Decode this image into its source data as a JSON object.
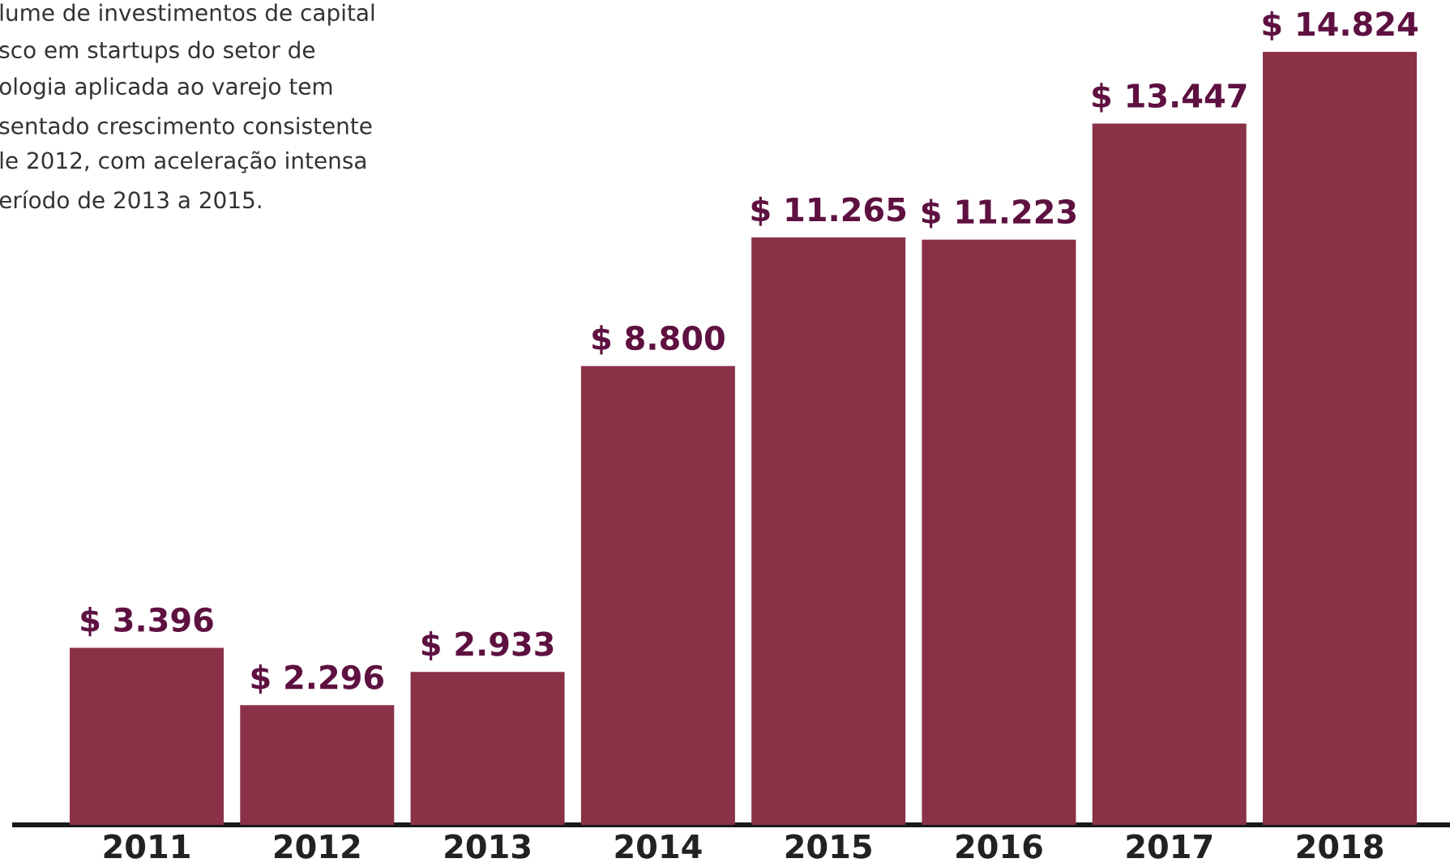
{
  "chart_data": {
    "type": "bar",
    "categories": [
      "2011",
      "2012",
      "2013",
      "2014",
      "2015",
      "2016",
      "2017",
      "2018"
    ],
    "values": [
      3396,
      2296,
      2933,
      8800,
      11265,
      11223,
      13447,
      14824
    ],
    "value_labels": [
      "$ 3.396",
      "$ 2.296",
      "$ 2.933",
      "$ 8.800",
      "$ 11.265",
      "$ 11.223",
      "$ 13.447",
      "$ 14.824"
    ],
    "color": "#8a3147",
    "annotations": [
      "lume de investimentos de capital",
      "sco em startups do setor de",
      "ologia aplicada ao varejo tem",
      "sentado crescimento consistente",
      "le 2012, com aceleração intensa",
      "eríodo de 2013 a 2015."
    ]
  }
}
